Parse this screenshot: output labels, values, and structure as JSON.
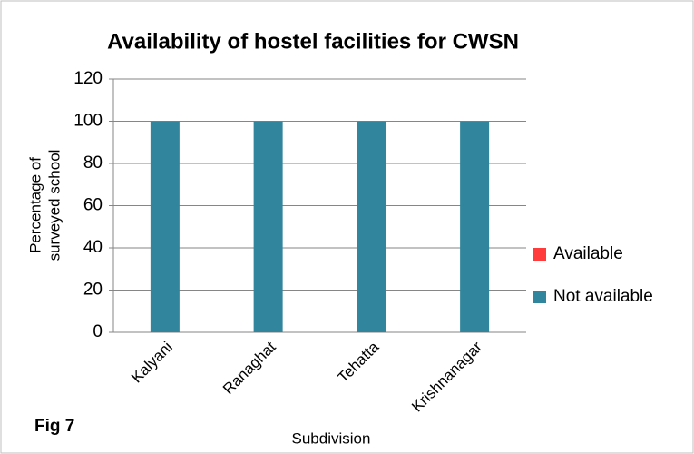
{
  "chart_data": {
    "type": "stacked_bar",
    "title": "Availability of hostel  facilities for CWSN",
    "ylabel": [
      "Percentage of",
      "surveyed school"
    ],
    "xlabel": "Subdivision",
    "annotation": "Fig 7",
    "categories": [
      "Kalyani",
      "Ranaghat",
      "Tehatta",
      "Krishnanagar"
    ],
    "series": [
      {
        "name": "Available",
        "color": "#ff3b3b",
        "values": [
          0,
          0,
          0,
          0
        ]
      },
      {
        "name": "Not available",
        "color": "#31859c",
        "values": [
          100,
          100,
          100,
          100
        ]
      }
    ],
    "ylim": [
      0,
      120
    ],
    "yticks": [
      0,
      20,
      40,
      60,
      80,
      100,
      120
    ],
    "grid": true,
    "legend": "right"
  }
}
